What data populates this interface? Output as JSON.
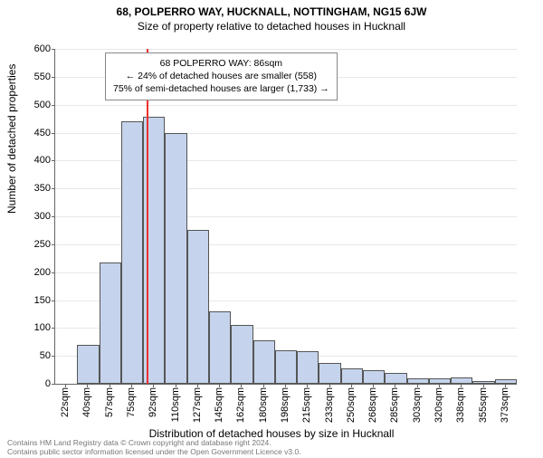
{
  "title": "68, POLPERRO WAY, HUCKNALL, NOTTINGHAM, NG15 6JW",
  "subtitle": "Size of property relative to detached houses in Hucknall",
  "y_axis_label": "Number of detached properties",
  "x_axis_label": "Distribution of detached houses by size in Hucknall",
  "footer_line1": "Contains HM Land Registry data © Crown copyright and database right 2024.",
  "footer_line2": "Contains public sector information licensed under the Open Government Licence v3.0.",
  "info_box": {
    "line1": "68 POLPERRO WAY: 86sqm",
    "line2": "← 24% of detached houses are smaller (558)",
    "line3": "75% of semi-detached houses are larger (1,733) →"
  },
  "chart": {
    "type": "histogram",
    "background_color": "#ffffff",
    "grid_color": "#e8e8e8",
    "axis_color": "#666666",
    "bar_fill": "#c5d4ec",
    "bar_border": "#555555",
    "marker_color": "#ee3030",
    "marker_x_value": 86,
    "ylim": [
      0,
      600
    ],
    "ytick_step": 50,
    "x_categories": [
      "22sqm",
      "40sqm",
      "57sqm",
      "75sqm",
      "92sqm",
      "110sqm",
      "127sqm",
      "145sqm",
      "162sqm",
      "180sqm",
      "198sqm",
      "215sqm",
      "233sqm",
      "250sqm",
      "268sqm",
      "285sqm",
      "303sqm",
      "320sqm",
      "338sqm",
      "355sqm",
      "373sqm"
    ],
    "values": [
      0,
      70,
      218,
      470,
      478,
      450,
      275,
      130,
      105,
      78,
      60,
      58,
      38,
      28,
      25,
      20,
      10,
      10,
      12,
      5,
      8
    ],
    "title_fontsize": 12,
    "label_fontsize": 12,
    "tick_fontsize": 11,
    "info_fontsize": 10.5
  }
}
